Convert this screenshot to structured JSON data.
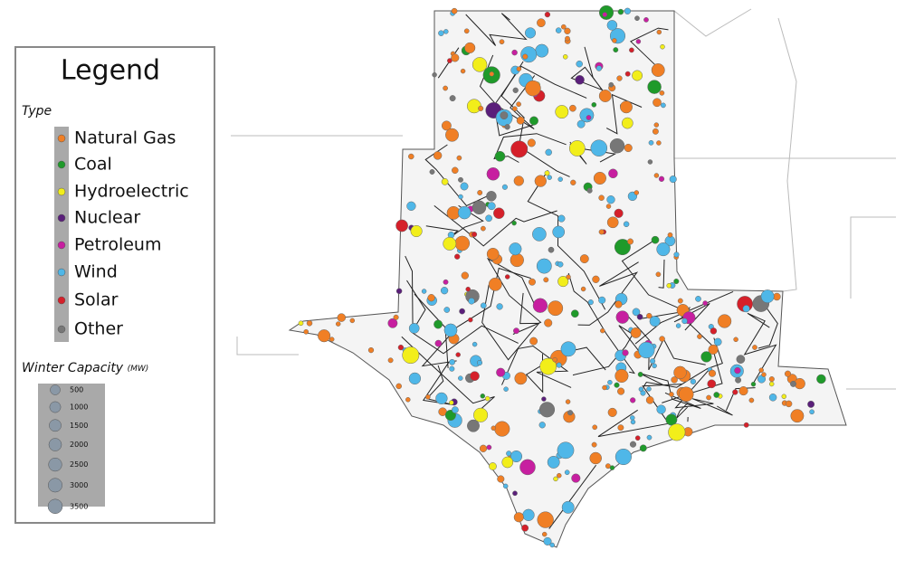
{
  "legend": {
    "title": "Legend",
    "type_heading": "Type",
    "types": [
      {
        "name": "Natural Gas",
        "color": "#f07f25"
      },
      {
        "name": "Coal",
        "color": "#1f9a2a"
      },
      {
        "name": "Hydroelectric",
        "color": "#f2ee1a"
      },
      {
        "name": "Nuclear",
        "color": "#5a1f7a"
      },
      {
        "name": "Petroleum",
        "color": "#c71fa0"
      },
      {
        "name": "Wind",
        "color": "#4fb7e8"
      },
      {
        "name": "Solar",
        "color": "#d5202a"
      },
      {
        "name": "Other",
        "color": "#777777"
      }
    ],
    "size_heading": "Winter Capacity",
    "size_unit": "(MW)",
    "sizes": [
      500,
      1000,
      1500,
      2000,
      2500,
      3000,
      3500
    ]
  }
}
